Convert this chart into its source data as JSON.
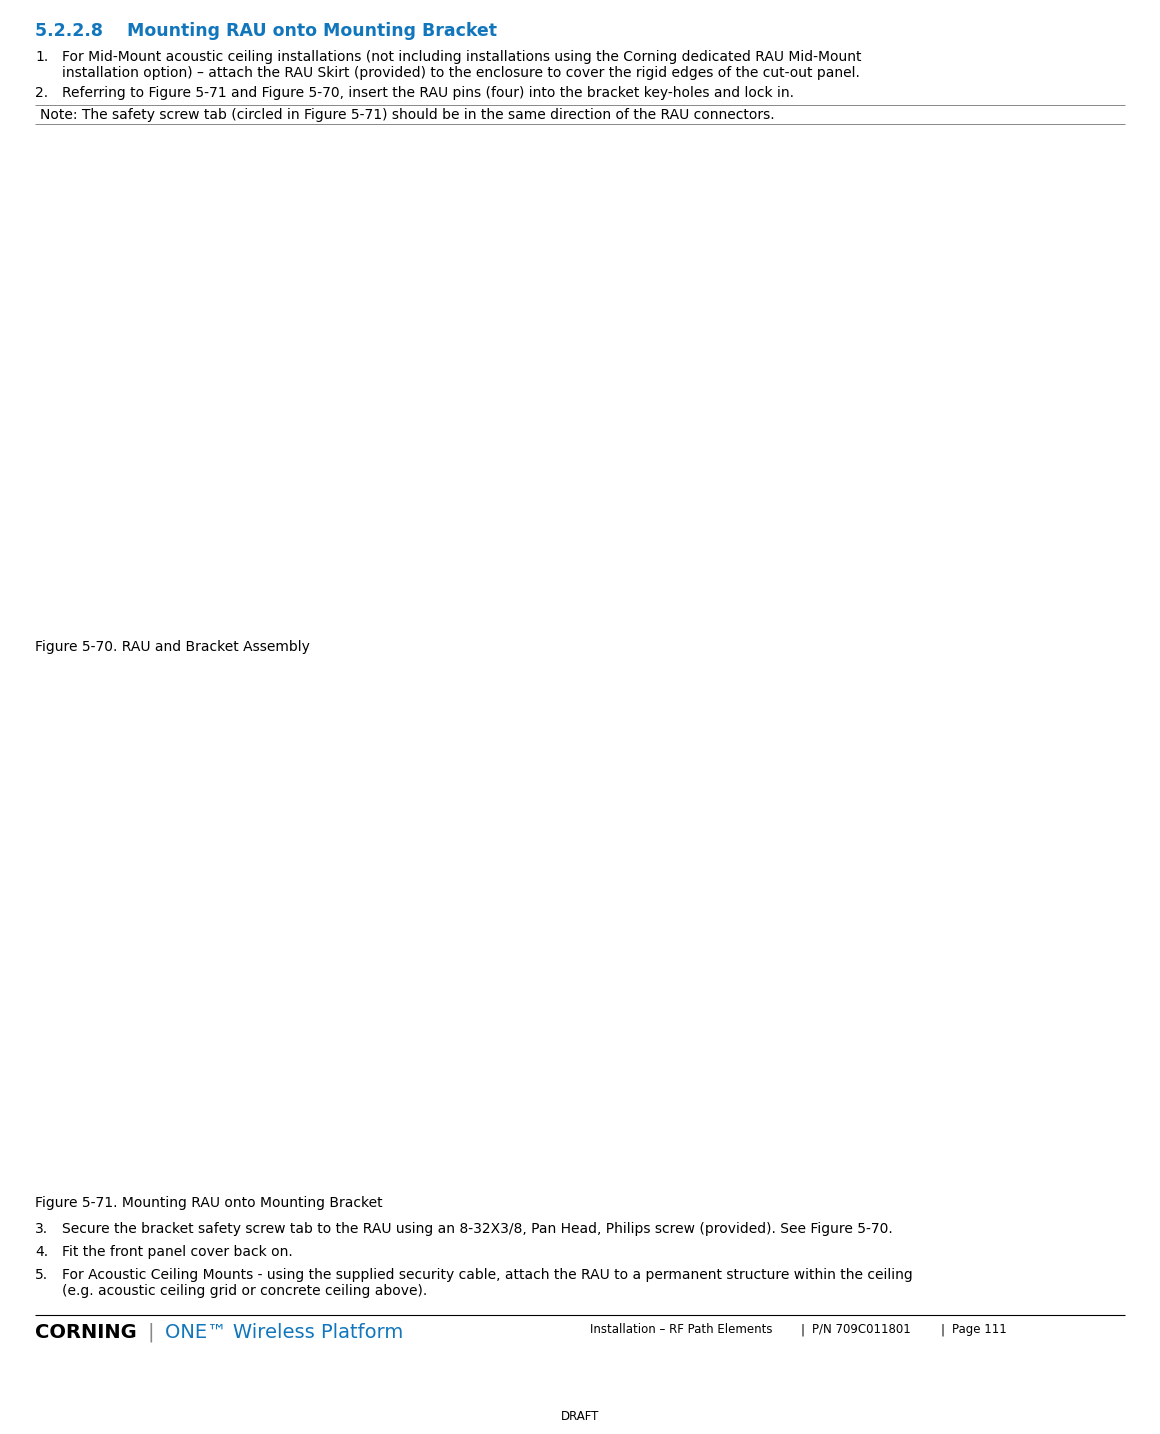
{
  "title_number": "5.2.2.8",
  "title_text": "Mounting RAU onto Mounting Bracket",
  "title_color": "#1176bc",
  "title_fontsize": 12.5,
  "body_fontsize": 10.0,
  "note_fontsize": 10.0,
  "fig_label_fontsize": 10.0,
  "background_color": "#ffffff",
  "text_color": "#000000",
  "item1_line1": "For Mid-Mount acoustic ceiling installations (not including installations using the Corning dedicated RAU Mid-Mount",
  "item1_line2": "installation option) – attach the RAU Skirt (provided) to the enclosure to cover the rigid edges of the cut-out panel.",
  "item2_text": "Referring to Figure 5-71 and Figure 5-70, insert the RAU pins (four) into the bracket key-holes and lock in.",
  "note_text": "Note: The safety screw tab (circled in Figure 5-71) should be in the same direction of the RAU connectors.",
  "fig70_label": "Figure 5-70. RAU and Bracket Assembly",
  "fig71_label": "Figure 5-71. Mounting RAU onto Mounting Bracket",
  "item3_text": "Secure the bracket safety screw tab to the RAU using an 8-32X3/8, Pan Head, Philips screw (provided). See Figure 5-70.",
  "item4_text": "Fit the front panel cover back on.",
  "item5_line1": "For Acoustic Ceiling Mounts - using the supplied security cable, attach the RAU to a permanent structure within the ceiling",
  "item5_line2": "(e.g. acoustic ceiling grid or concrete ceiling above).",
  "footer_corning": "CORNING",
  "footer_one": "ONE™ Wireless Platform",
  "footer_center": "Installation – RF Path Elements",
  "footer_pn": "P/N 709C011801",
  "footer_page": "Page 111",
  "footer_draft": "DRAFT",
  "corning_color": "#000000",
  "one_color": "#1176bc",
  "note_bg": "#f0f0f0",
  "fig70_crop": [
    95,
    160,
    870,
    610
  ],
  "fig71_crop": [
    130,
    650,
    1010,
    1180
  ]
}
